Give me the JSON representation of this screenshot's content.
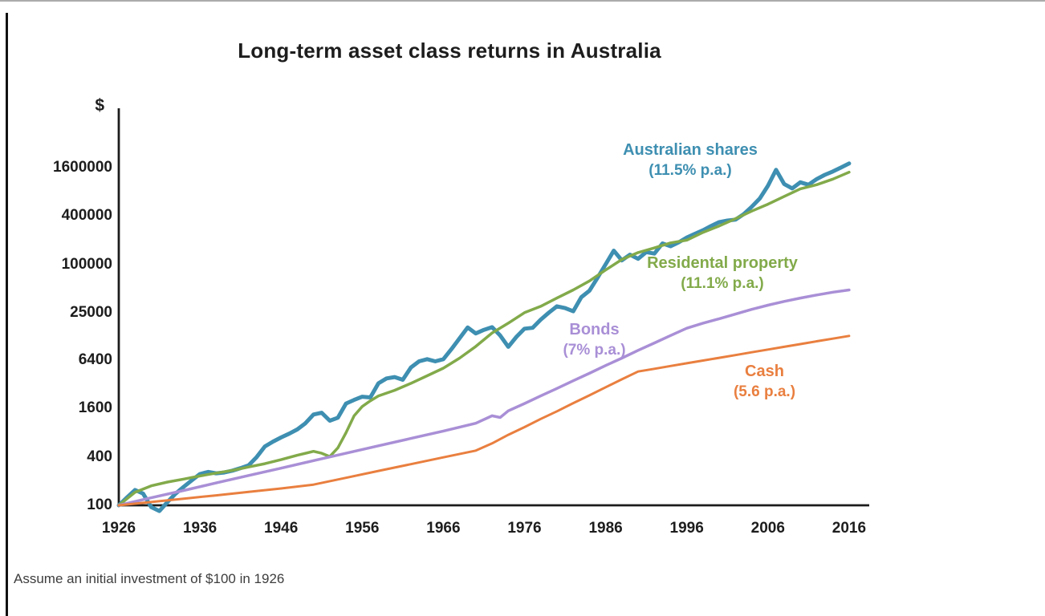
{
  "page": {
    "footnote": "Assume an initial investment of $100 in 1926"
  },
  "chart_data": {
    "type": "line",
    "title": "Long-term asset class returns in Australia",
    "currency_symbol": "$",
    "xlabel": "",
    "ylabel": "$",
    "y_scale": "log-base-4",
    "y_range": [
      100,
      1600000
    ],
    "x_range": [
      1926,
      2016
    ],
    "grid": false,
    "legend_position": "inline-annotations",
    "footnote": "Assume an initial investment of $100 in 1926",
    "y_ticks": [
      {
        "label": "100",
        "value": 100
      },
      {
        "label": "400",
        "value": 400
      },
      {
        "label": "1600",
        "value": 1600
      },
      {
        "label": "6400",
        "value": 6400
      },
      {
        "label": "25000",
        "value": 25000
      },
      {
        "label": "100000",
        "value": 100000
      },
      {
        "label": "400000",
        "value": 400000
      },
      {
        "label": "1600000",
        "value": 1600000
      }
    ],
    "x_ticks": [
      {
        "label": "1926",
        "year": 1926
      },
      {
        "label": "1936",
        "year": 1936
      },
      {
        "label": "1946",
        "year": 1946
      },
      {
        "label": "1956",
        "year": 1956
      },
      {
        "label": "1966",
        "year": 1966
      },
      {
        "label": "1976",
        "year": 1976
      },
      {
        "label": "1986",
        "year": 1986
      },
      {
        "label": "1996",
        "year": 1996
      },
      {
        "label": "2006",
        "year": 2006
      },
      {
        "label": "2016",
        "year": 2016
      }
    ],
    "series": [
      {
        "id": "australian-shares",
        "name": "Australian shares",
        "rate_label": "(11.5% p.a.)",
        "color": "#3e8fb1",
        "stroke_width": 5,
        "points": [
          [
            1926,
            100
          ],
          [
            1927,
            125
          ],
          [
            1928,
            155
          ],
          [
            1929,
            140
          ],
          [
            1930,
            95
          ],
          [
            1931,
            85
          ],
          [
            1932,
            110
          ],
          [
            1933,
            140
          ],
          [
            1934,
            170
          ],
          [
            1935,
            205
          ],
          [
            1936,
            245
          ],
          [
            1937,
            260
          ],
          [
            1938,
            250
          ],
          [
            1939,
            256
          ],
          [
            1940,
            270
          ],
          [
            1941,
            290
          ],
          [
            1942,
            315
          ],
          [
            1943,
            400
          ],
          [
            1944,
            540
          ],
          [
            1945,
            620
          ],
          [
            1946,
            700
          ],
          [
            1947,
            780
          ],
          [
            1948,
            880
          ],
          [
            1949,
            1050
          ],
          [
            1950,
            1350
          ],
          [
            1951,
            1420
          ],
          [
            1952,
            1130
          ],
          [
            1953,
            1230
          ],
          [
            1954,
            1850
          ],
          [
            1955,
            2050
          ],
          [
            1956,
            2250
          ],
          [
            1957,
            2200
          ],
          [
            1958,
            3300
          ],
          [
            1959,
            3800
          ],
          [
            1960,
            3950
          ],
          [
            1961,
            3650
          ],
          [
            1962,
            5200
          ],
          [
            1963,
            6200
          ],
          [
            1964,
            6600
          ],
          [
            1965,
            6200
          ],
          [
            1966,
            6600
          ],
          [
            1967,
            8800
          ],
          [
            1968,
            12000
          ],
          [
            1969,
            16400
          ],
          [
            1970,
            13800
          ],
          [
            1971,
            15300
          ],
          [
            1972,
            16500
          ],
          [
            1973,
            13000
          ],
          [
            1974,
            9400
          ],
          [
            1975,
            12500
          ],
          [
            1976,
            15800
          ],
          [
            1977,
            16200
          ],
          [
            1978,
            20500
          ],
          [
            1979,
            25000
          ],
          [
            1980,
            30000
          ],
          [
            1981,
            28500
          ],
          [
            1982,
            26000
          ],
          [
            1983,
            39000
          ],
          [
            1984,
            47000
          ],
          [
            1985,
            68000
          ],
          [
            1986,
            100000
          ],
          [
            1987,
            148000
          ],
          [
            1988,
            112000
          ],
          [
            1989,
            132000
          ],
          [
            1990,
            117000
          ],
          [
            1991,
            142000
          ],
          [
            1992,
            136000
          ],
          [
            1993,
            182000
          ],
          [
            1994,
            168000
          ],
          [
            1995,
            188000
          ],
          [
            1996,
            215000
          ],
          [
            1997,
            240000
          ],
          [
            1998,
            265000
          ],
          [
            1999,
            300000
          ],
          [
            2000,
            335000
          ],
          [
            2001,
            350000
          ],
          [
            2002,
            360000
          ],
          [
            2003,
            420000
          ],
          [
            2004,
            520000
          ],
          [
            2005,
            660000
          ],
          [
            2006,
            950000
          ],
          [
            2007,
            1500000
          ],
          [
            2008,
            1000000
          ],
          [
            2009,
            880000
          ],
          [
            2010,
            1050000
          ],
          [
            2011,
            980000
          ],
          [
            2012,
            1150000
          ],
          [
            2013,
            1300000
          ],
          [
            2014,
            1430000
          ],
          [
            2015,
            1600000
          ],
          [
            2016,
            1800000
          ]
        ]
      },
      {
        "id": "residential-property",
        "name": "Residental property",
        "rate_label": "(11.1% p.a.)",
        "color": "#82aa4a",
        "stroke_width": 3.5,
        "points": [
          [
            1926,
            100
          ],
          [
            1928,
            145
          ],
          [
            1930,
            175
          ],
          [
            1932,
            195
          ],
          [
            1934,
            212
          ],
          [
            1936,
            232
          ],
          [
            1938,
            252
          ],
          [
            1940,
            272
          ],
          [
            1942,
            300
          ],
          [
            1944,
            330
          ],
          [
            1946,
            370
          ],
          [
            1948,
            420
          ],
          [
            1950,
            470
          ],
          [
            1951,
            445
          ],
          [
            1952,
            405
          ],
          [
            1953,
            520
          ],
          [
            1954,
            800
          ],
          [
            1955,
            1300
          ],
          [
            1956,
            1700
          ],
          [
            1957,
            2000
          ],
          [
            1958,
            2300
          ],
          [
            1960,
            2700
          ],
          [
            1962,
            3300
          ],
          [
            1964,
            4100
          ],
          [
            1966,
            5100
          ],
          [
            1968,
            6800
          ],
          [
            1970,
            9500
          ],
          [
            1972,
            14000
          ],
          [
            1974,
            18500
          ],
          [
            1976,
            25000
          ],
          [
            1978,
            30000
          ],
          [
            1980,
            38000
          ],
          [
            1982,
            48000
          ],
          [
            1984,
            62000
          ],
          [
            1986,
            85000
          ],
          [
            1988,
            115000
          ],
          [
            1990,
            140000
          ],
          [
            1992,
            160000
          ],
          [
            1994,
            185000
          ],
          [
            1996,
            200000
          ],
          [
            1998,
            250000
          ],
          [
            2000,
            300000
          ],
          [
            2002,
            370000
          ],
          [
            2004,
            460000
          ],
          [
            2006,
            560000
          ],
          [
            2008,
            700000
          ],
          [
            2010,
            870000
          ],
          [
            2012,
            980000
          ],
          [
            2014,
            1150000
          ],
          [
            2016,
            1400000
          ]
        ]
      },
      {
        "id": "bonds",
        "name": "Bonds",
        "rate_label": "(7% p.a.)",
        "color": "#a98fd6",
        "stroke_width": 3.5,
        "points": [
          [
            1926,
            100
          ],
          [
            1930,
            124
          ],
          [
            1934,
            153
          ],
          [
            1938,
            190
          ],
          [
            1942,
            235
          ],
          [
            1946,
            290
          ],
          [
            1950,
            360
          ],
          [
            1954,
            445
          ],
          [
            1958,
            550
          ],
          [
            1962,
            680
          ],
          [
            1966,
            840
          ],
          [
            1970,
            1050
          ],
          [
            1972,
            1300
          ],
          [
            1973,
            1240
          ],
          [
            1974,
            1500
          ],
          [
            1976,
            1850
          ],
          [
            1978,
            2300
          ],
          [
            1980,
            2850
          ],
          [
            1982,
            3550
          ],
          [
            1984,
            4400
          ],
          [
            1986,
            5500
          ],
          [
            1988,
            6800
          ],
          [
            1990,
            8500
          ],
          [
            1992,
            10500
          ],
          [
            1994,
            13000
          ],
          [
            1996,
            16000
          ],
          [
            1998,
            18500
          ],
          [
            2000,
            21000
          ],
          [
            2002,
            24000
          ],
          [
            2004,
            27500
          ],
          [
            2006,
            31000
          ],
          [
            2008,
            34500
          ],
          [
            2010,
            38000
          ],
          [
            2012,
            41500
          ],
          [
            2014,
            45000
          ],
          [
            2016,
            48000
          ]
        ]
      },
      {
        "id": "cash",
        "name": "Cash",
        "rate_label": "(5.6 p.a.)",
        "color": "#e97f3f",
        "stroke_width": 3,
        "points": [
          [
            1926,
            100
          ],
          [
            1930,
            110
          ],
          [
            1934,
            121
          ],
          [
            1938,
            133
          ],
          [
            1942,
            147
          ],
          [
            1946,
            162
          ],
          [
            1950,
            181
          ],
          [
            1954,
            220
          ],
          [
            1958,
            268
          ],
          [
            1962,
            325
          ],
          [
            1966,
            395
          ],
          [
            1970,
            480
          ],
          [
            1972,
            590
          ],
          [
            1974,
            755
          ],
          [
            1976,
            940
          ],
          [
            1978,
            1190
          ],
          [
            1980,
            1480
          ],
          [
            1982,
            1870
          ],
          [
            1984,
            2340
          ],
          [
            1986,
            2950
          ],
          [
            1988,
            3700
          ],
          [
            1990,
            4630
          ],
          [
            1992,
            5000
          ],
          [
            1994,
            5420
          ],
          [
            1996,
            5870
          ],
          [
            1998,
            6340
          ],
          [
            2000,
            6860
          ],
          [
            2002,
            7420
          ],
          [
            2004,
            8030
          ],
          [
            2006,
            8680
          ],
          [
            2008,
            9390
          ],
          [
            2010,
            10160
          ],
          [
            2012,
            11000
          ],
          [
            2014,
            11880
          ],
          [
            2016,
            12850
          ]
        ]
      }
    ]
  }
}
